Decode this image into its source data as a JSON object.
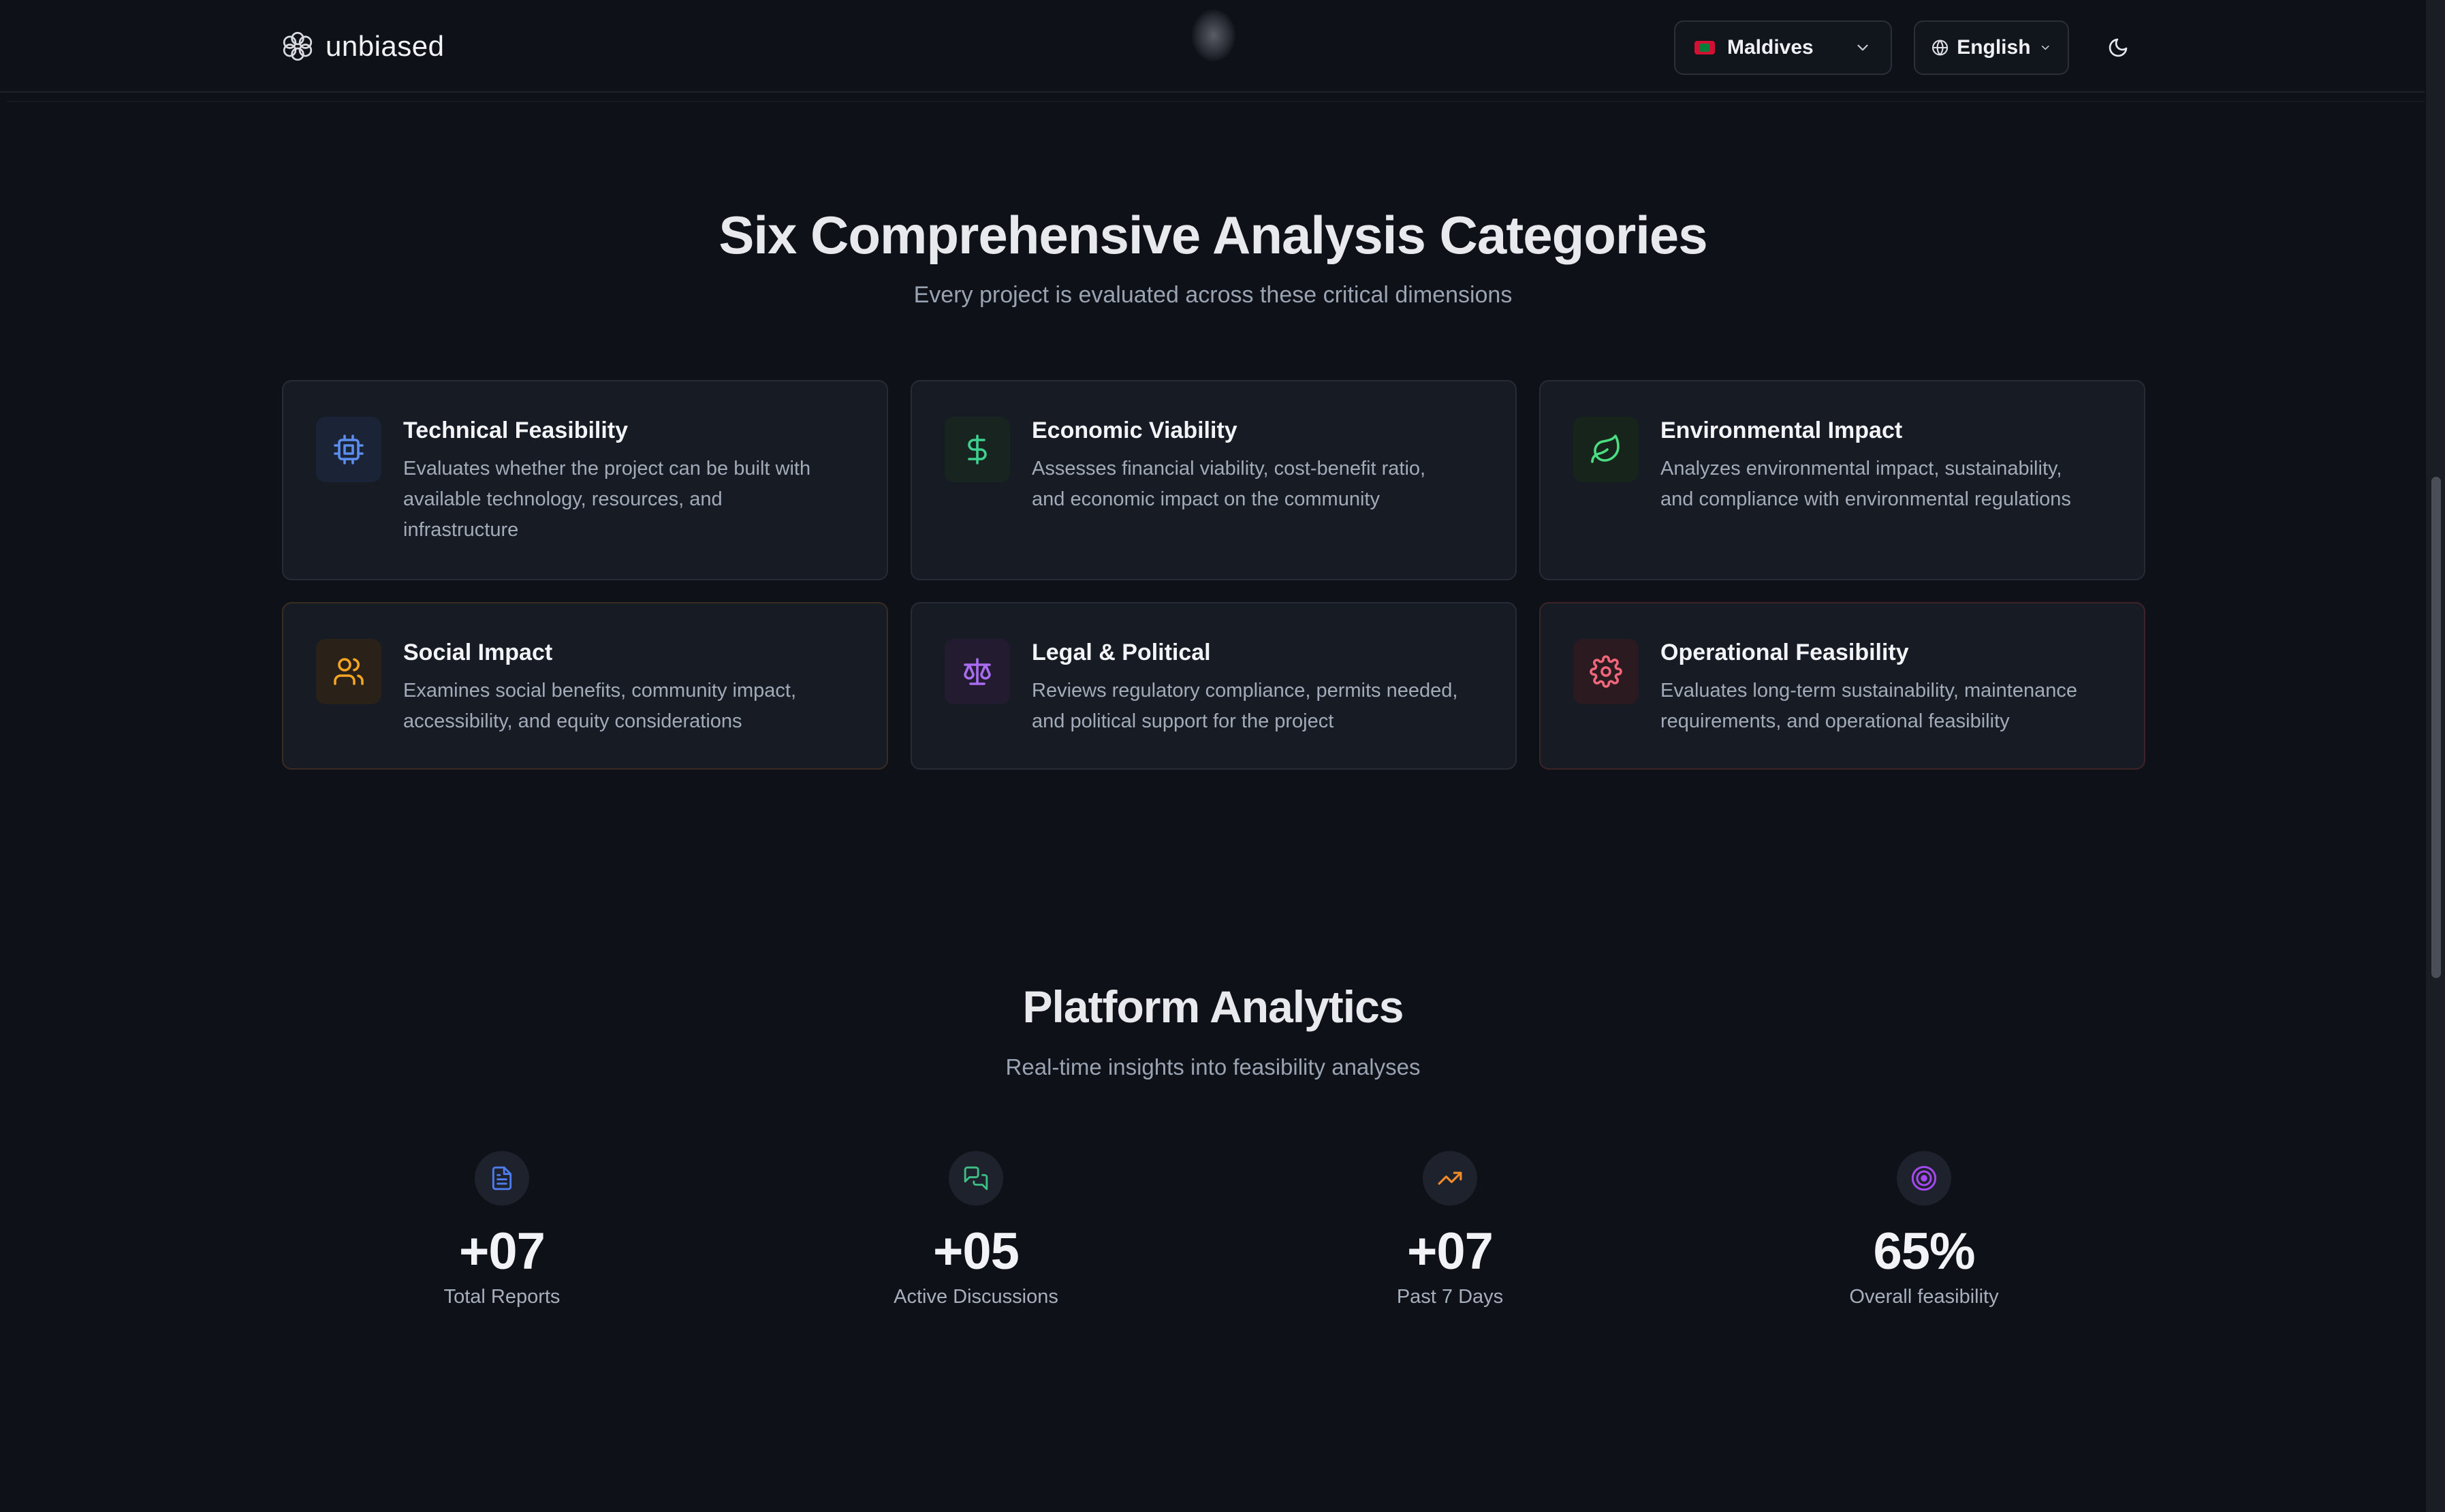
{
  "header": {
    "brand": "unbiased",
    "country": "Maldives",
    "language": "English"
  },
  "categories": {
    "title": "Six Comprehensive Analysis Categories",
    "subtitle": "Every project is evaluated across these critical dimensions",
    "items": [
      {
        "title": "Technical Feasibility",
        "description": "Evaluates whether the project can be built with available technology, resources, and infrastructure",
        "icon": "cpu-icon",
        "color": "#5b8def"
      },
      {
        "title": "Economic Viability",
        "description": "Assesses financial viability, cost-benefit ratio, and economic impact on the community",
        "icon": "dollar-icon",
        "color": "#3fcf8e"
      },
      {
        "title": "Environmental Impact",
        "description": "Analyzes environmental impact, sustainability, and compliance with environmental regulations",
        "icon": "leaf-icon",
        "color": "#4ade80"
      },
      {
        "title": "Social Impact",
        "description": "Examines social benefits, community impact, accessibility, and equity considerations",
        "icon": "users-icon",
        "color": "#f5a524"
      },
      {
        "title": "Legal & Political",
        "description": "Reviews regulatory compliance, permits needed, and political support for the project",
        "icon": "scale-icon",
        "color": "#a86cf0"
      },
      {
        "title": "Operational Feasibility",
        "description": "Evaluates long-term sustainability, maintenance requirements, and operational feasibility",
        "icon": "gear-icon",
        "color": "#f0667a"
      }
    ]
  },
  "analytics": {
    "title": "Platform Analytics",
    "subtitle": "Real-time insights into feasibility analyses",
    "stats": [
      {
        "value": "+07",
        "label": "Total Reports",
        "icon": "document-icon",
        "color": "#4f7df0"
      },
      {
        "value": "+05",
        "label": "Active Discussions",
        "icon": "chat-icon",
        "color": "#3fbf86"
      },
      {
        "value": "+07",
        "label": "Past 7 Days",
        "icon": "trending-up-icon",
        "color": "#f08a2a"
      },
      {
        "value": "65%",
        "label": "Overall feasibility",
        "icon": "target-icon",
        "color": "#a548f0"
      }
    ]
  }
}
